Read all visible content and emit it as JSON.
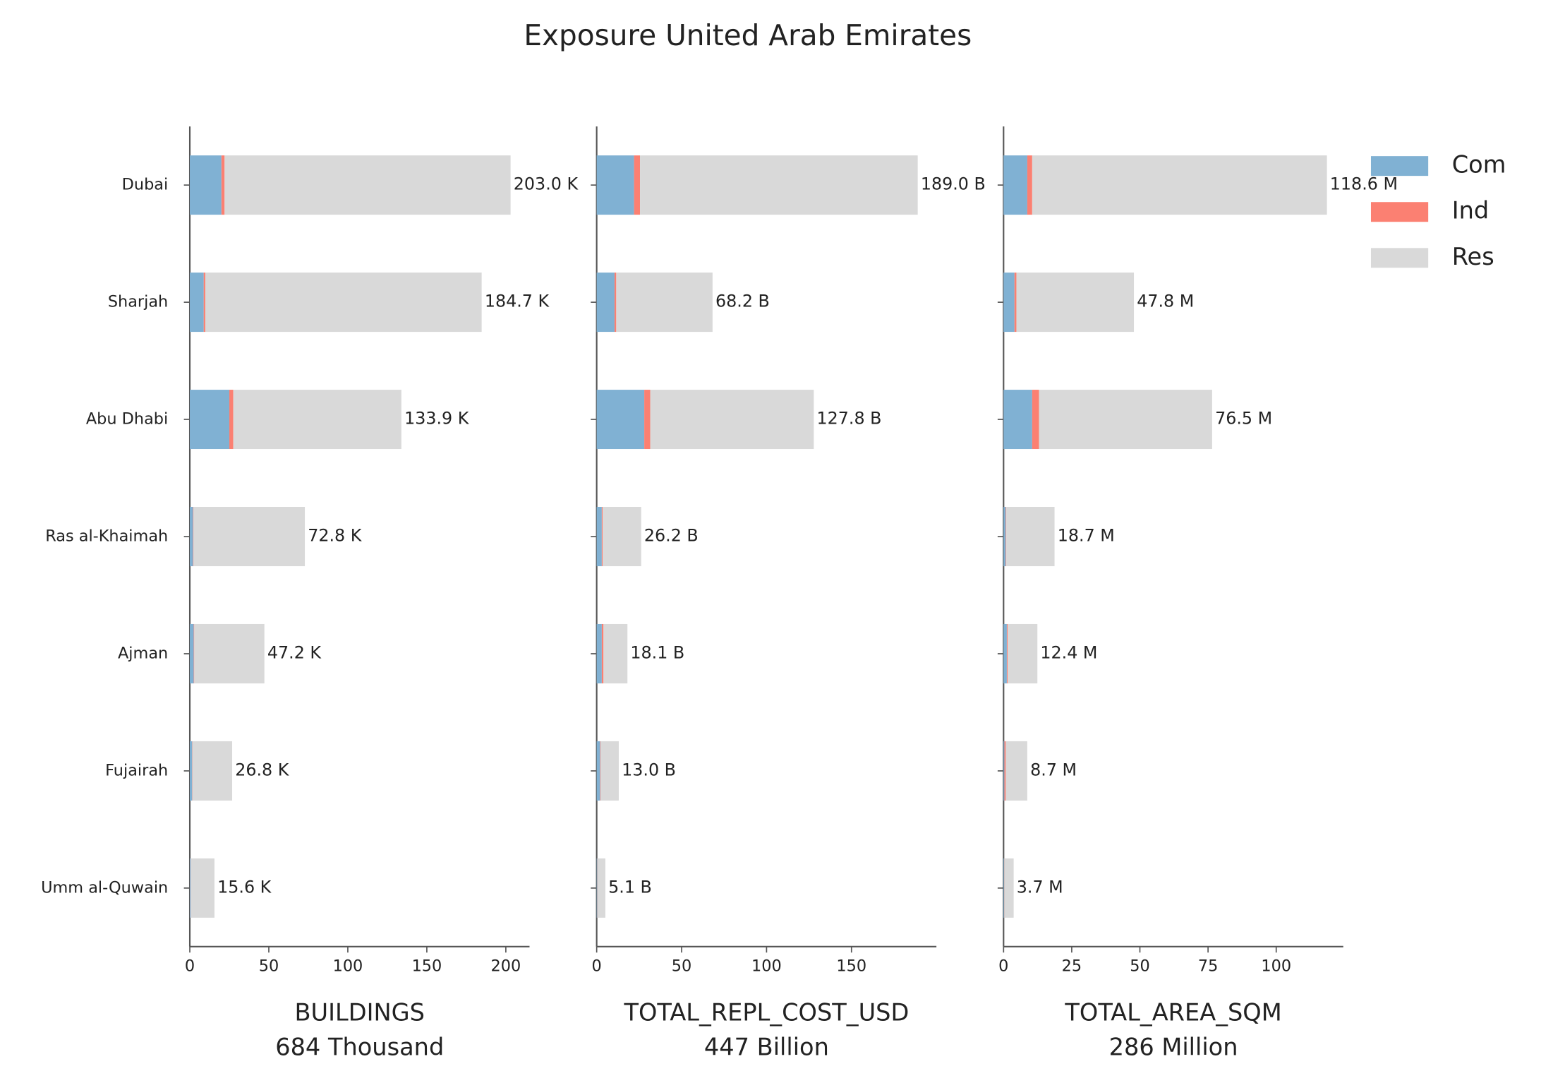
{
  "title": "Exposure United Arab Emirates",
  "chart_data": [
    {
      "type": "barh",
      "xlabel": "BUILDINGS",
      "xlabel_sub": "684 Thousand",
      "categories": [
        "Dubai",
        "Sharjah",
        "Abu Dhabi",
        "Ras al-Khaimah",
        "Ajman",
        "Fujairah",
        "Umm al-Quwain"
      ],
      "xlim": [
        0,
        215
      ],
      "xticks": [
        0,
        50,
        100,
        150,
        200
      ],
      "series": [
        {
          "color": "#80b1d3",
          "values": [
            20,
            8.8,
            25,
            2,
            2.5,
            1.5,
            0.5
          ]
        },
        {
          "color": "#fb8072",
          "values": [
            2,
            1,
            2.5,
            0.3,
            0.3,
            0.2,
            0.1
          ]
        },
        {
          "color": "#d9d9d9",
          "values": [
            181,
            174.9,
            106.4,
            70.5,
            44.4,
            25.1,
            15.0
          ]
        }
      ],
      "total_labels": [
        "203.0 K",
        "184.7 K",
        "133.9 K",
        "72.8 K",
        "47.2 K",
        "26.8 K",
        "15.6 K"
      ]
    },
    {
      "type": "barh",
      "xlabel": "TOTAL_REPL_COST_USD",
      "xlabel_sub": "447 Billion",
      "xlim": [
        0,
        200
      ],
      "xticks": [
        0,
        50,
        100,
        150
      ],
      "series": [
        {
          "color": "#80b1d3",
          "values": [
            22,
            10.5,
            28,
            3,
            3,
            2,
            0.3
          ]
        },
        {
          "color": "#fb8072",
          "values": [
            3.5,
            1,
            3.5,
            0.5,
            1,
            0.3,
            0.1
          ]
        },
        {
          "color": "#d9d9d9",
          "values": [
            163.5,
            56.7,
            96.3,
            22.7,
            14.1,
            10.7,
            4.7
          ]
        }
      ],
      "total_labels": [
        "189.0 B",
        "68.2 B",
        "127.8 B",
        "26.2 B",
        "18.1 B",
        "13.0 B",
        "5.1 B"
      ]
    },
    {
      "type": "barh",
      "xlabel": "TOTAL_AREA_SQM",
      "xlabel_sub": "286 Million",
      "xlim": [
        0,
        124.6
      ],
      "xticks": [
        0,
        25,
        50,
        75,
        100
      ],
      "legend": "upper right",
      "series": [
        {
          "name": "Com",
          "color": "#80b1d3",
          "values": [
            8.7,
            4,
            10.5,
            0.8,
            1.2,
            0.3,
            0.2
          ]
        },
        {
          "name": "Ind",
          "color": "#fb8072",
          "values": [
            1.8,
            0.7,
            2.5,
            0.2,
            0.3,
            0.5,
            0.05
          ]
        },
        {
          "name": "Res",
          "color": "#d9d9d9",
          "values": [
            108.1,
            43.1,
            63.5,
            17.7,
            10.9,
            7.9,
            3.45
          ]
        }
      ],
      "total_labels": [
        "118.6 M",
        "47.8 M",
        "76.5 M",
        "18.7 M",
        "12.4 M",
        "8.7 M",
        "3.7 M"
      ]
    }
  ]
}
